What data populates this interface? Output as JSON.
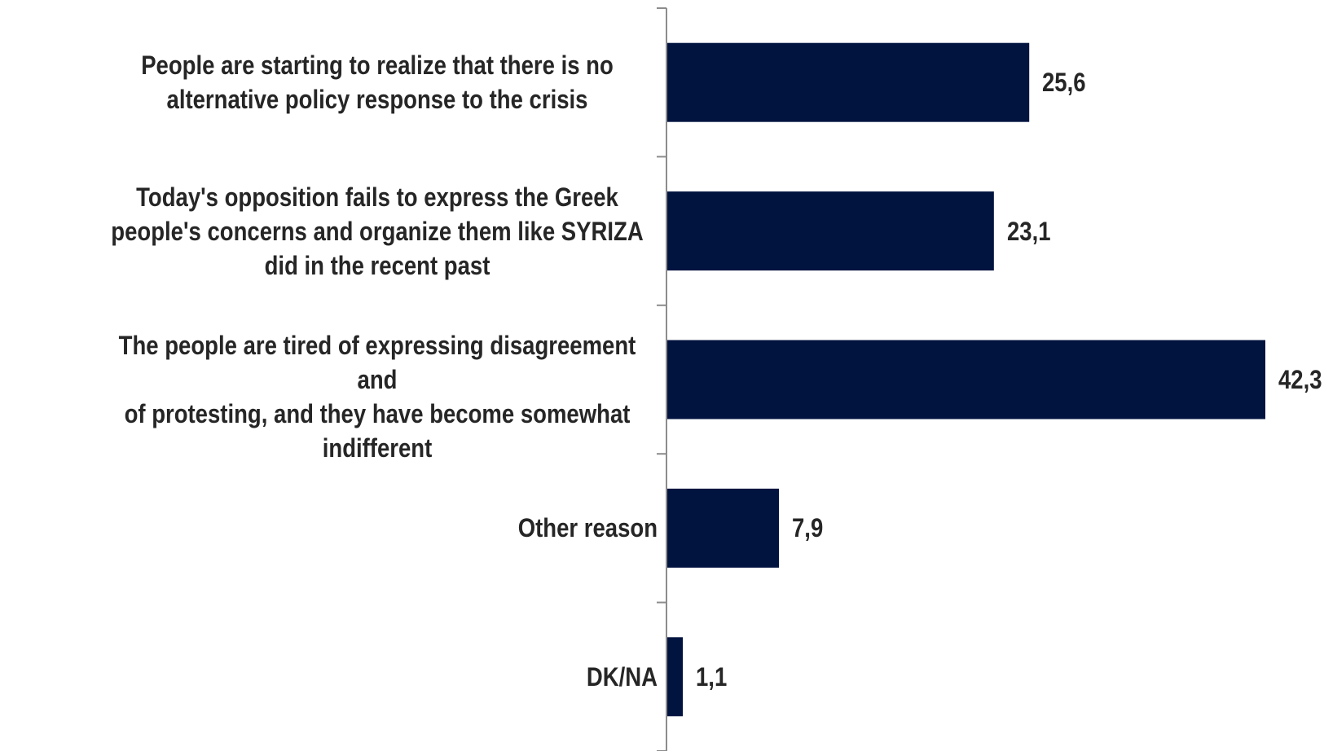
{
  "chart_data": {
    "type": "bar",
    "orientation": "horizontal",
    "categories": [
      [
        "People are starting to realize that there is no",
        "alternative policy response to the crisis"
      ],
      [
        "Today's opposition fails to express the Greek",
        "people's concerns and organize them like SYRIZA",
        "did in the recent past"
      ],
      [
        "The people are tired of expressing disagreement and",
        "of protesting, and they have become somewhat",
        "indifferent"
      ],
      [
        "Other reason"
      ],
      [
        "DK/NA"
      ]
    ],
    "values": [
      25.6,
      23.1,
      42.3,
      7.9,
      1.1
    ],
    "value_labels": [
      "25,6",
      "23,1",
      "42,3",
      "7,9",
      "1,1"
    ],
    "xlim": [
      0,
      42.3
    ],
    "bar_color": "#01133f",
    "axis_color": "#8c8c8c",
    "text_color": "#262626",
    "grid": false,
    "legend": "none"
  }
}
